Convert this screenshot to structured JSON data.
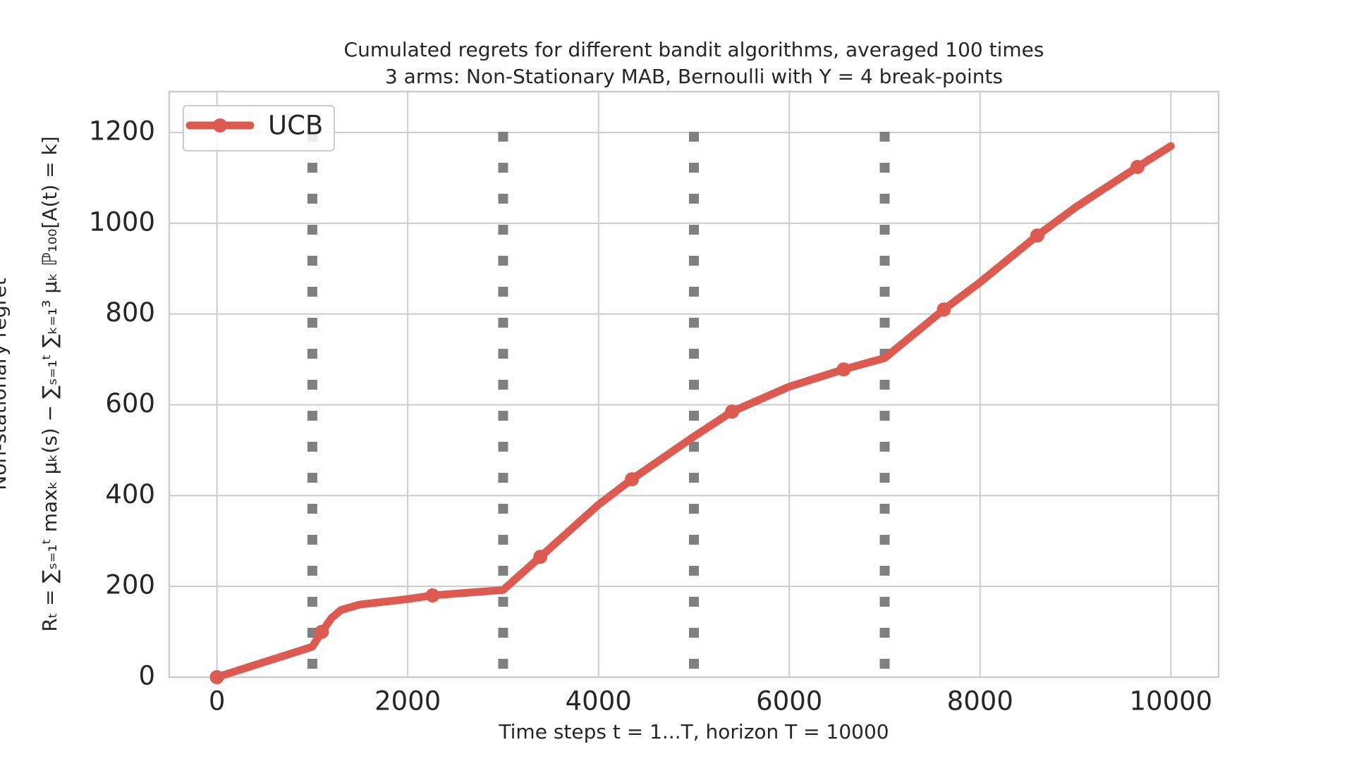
{
  "chart_data": {
    "type": "line",
    "title": "Cumulated regrets for different bandit algorithms, averaged 100 times",
    "subtitle": "3 arms: Non-Stationary MAB, Bernoulli with Υ = 4 break-points",
    "x_label": "Time steps t = 1...T, horizon T = 10000",
    "y_label": "Non-stationary regret",
    "y_label_formula": "Rₜ = ∑ₛ₌₁ᵗ maxₖ μₖ(s) − ∑ₛ₌₁ᵗ ∑ₖ₌₁³ μₖ ℙ₁₀₀[A(t) = k]",
    "x": [
      0,
      1000,
      1100,
      1200,
      1300,
      1500,
      2000,
      2260,
      3000,
      3390,
      4000,
      4350,
      5000,
      5400,
      6000,
      6570,
      7000,
      7620,
      8000,
      8600,
      9000,
      9650,
      10000
    ],
    "series": [
      {
        "name": "UCB",
        "color": "#dd5a51",
        "values": [
          0,
          67,
          100,
          130,
          148,
          160,
          172,
          180,
          192,
          265,
          380,
          436,
          530,
          585,
          640,
          678,
          703,
          810,
          870,
          973,
          1035,
          1124,
          1170
        ]
      }
    ],
    "marker_indices": [
      0,
      2,
      7,
      9,
      11,
      13,
      15,
      17,
      19,
      21
    ],
    "breakpoints": [
      1000,
      3000,
      5000,
      7000
    ],
    "breakpoint_color": "#808080",
    "xlim": [
      -500,
      10500
    ],
    "ylim": [
      0,
      1290
    ],
    "xticks": [
      0,
      2000,
      4000,
      6000,
      8000,
      10000
    ],
    "yticks": [
      0,
      200,
      400,
      600,
      800,
      1000,
      1200
    ],
    "grid": true,
    "legend": "upper left"
  }
}
